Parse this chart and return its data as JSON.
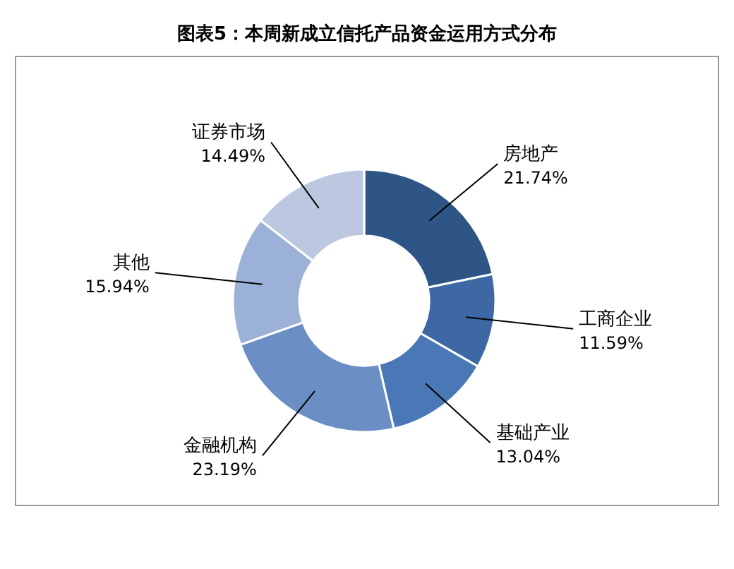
{
  "chart_data": {
    "type": "donut",
    "title": "图表5：本周新成立信托产品资金运用方式分布",
    "categories": [
      "房地产",
      "工商企业",
      "基础产业",
      "金融机构",
      "其他",
      "证券市场"
    ],
    "values": [
      21.74,
      11.59,
      13.04,
      23.19,
      15.94,
      14.49
    ],
    "colors": [
      "#2f5587",
      "#3d68a3",
      "#4a78b6",
      "#6b8ec4",
      "#9bb1d7",
      "#bcc8df"
    ],
    "value_labels": [
      "21.74%",
      "11.59%",
      "13.04%",
      "23.19%",
      "15.94%",
      "14.49%"
    ]
  }
}
